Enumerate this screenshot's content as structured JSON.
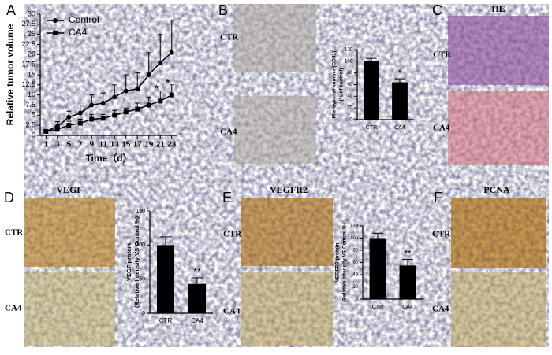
{
  "chart_data": [
    {
      "type": "line",
      "xlabel": "Time（d）",
      "ylabel": [
        "Relative tumor volume"
      ],
      "x": [
        1,
        3,
        5,
        7,
        9,
        11,
        13,
        15,
        17,
        19,
        21,
        23
      ],
      "xlim": [
        0,
        24
      ],
      "xticks": [
        1,
        3,
        5,
        7,
        9,
        11,
        13,
        15,
        17,
        19,
        21,
        23
      ],
      "ylim": [
        0,
        30
      ],
      "yticks": [
        0,
        2.5,
        5,
        7.5,
        10,
        12.5,
        15,
        17.5,
        20,
        22.5,
        25,
        27.5,
        30
      ],
      "legend": "upper left",
      "series": [
        {
          "name": "Control",
          "color": "#000000",
          "marker": "circle",
          "values": [
            1,
            2.2,
            4.5,
            5.5,
            7.5,
            8,
            9.5,
            11,
            11.5,
            15,
            18,
            20.5
          ],
          "errors": [
            0.4,
            1.2,
            1.5,
            2,
            2.5,
            2.5,
            3,
            4,
            4,
            5.5,
            7,
            8
          ]
        },
        {
          "name": "CA4",
          "color": "#000000",
          "marker": "square",
          "values": [
            1,
            1.5,
            2.5,
            3,
            4,
            4.2,
            5,
            5.8,
            6.5,
            7.5,
            8.5,
            10
          ],
          "errors": [
            0.3,
            0.8,
            1,
            1,
            1.2,
            1,
            1.2,
            1,
            1.5,
            2,
            2.5,
            2.5
          ]
        }
      ],
      "annotations": [
        {
          "text": "*",
          "x": 21
        },
        {
          "text": "*",
          "x": 23
        }
      ]
    },
    {
      "type": "bar",
      "ylabel": [
        "Microvessel number (CD31)",
        "(% of control)"
      ],
      "categories": [
        "CTR",
        "CA4"
      ],
      "values": [
        100,
        64
      ],
      "errors": [
        5,
        6
      ],
      "color": "#000000",
      "ylim": [
        0,
        120
      ],
      "yticks": [
        0,
        20,
        40,
        60,
        80,
        100,
        120
      ],
      "annotations": [
        {
          "text": "*",
          "category": 1
        }
      ]
    },
    {
      "type": "bar",
      "ylabel": [
        "VEGF protein",
        "(Relative Intensity VS Control %)"
      ],
      "categories": [
        "CTR",
        "CA4"
      ],
      "values": [
        100,
        43
      ],
      "errors": [
        12,
        9
      ],
      "color": "#000000",
      "ylim": [
        0,
        150
      ],
      "yticks": [
        0,
        50,
        100,
        150
      ],
      "annotations": [
        {
          "text": "**",
          "category": 1
        }
      ]
    },
    {
      "type": "bar",
      "ylabel": [
        "VEGFR2 protein",
        "(Relative Intensity VS Control %)"
      ],
      "categories": [
        "CTR",
        "CA4"
      ],
      "values": [
        100,
        55
      ],
      "errors": [
        8,
        10
      ],
      "color": "#000000",
      "ylim": [
        0,
        120
      ],
      "yticks": [
        0,
        20,
        40,
        60,
        80,
        100,
        120
      ],
      "annotations": [
        {
          "text": "**",
          "category": 1
        }
      ]
    }
  ],
  "panels": [
    {
      "letter": "A"
    },
    {
      "letter": "B",
      "labels": [
        "CTR",
        "CA4"
      ]
    },
    {
      "letter": "C",
      "title": "HE",
      "labels": [
        "CTR",
        "CA4"
      ]
    },
    {
      "letter": "D",
      "title": "VEGF",
      "labels": [
        "CTR",
        "CA4"
      ]
    },
    {
      "letter": "E",
      "title": "VEGFR2",
      "labels": [
        "CTR",
        "CA4"
      ]
    },
    {
      "letter": "F",
      "title": "PCNA",
      "labels": [
        "CTR",
        "CA4"
      ]
    }
  ]
}
